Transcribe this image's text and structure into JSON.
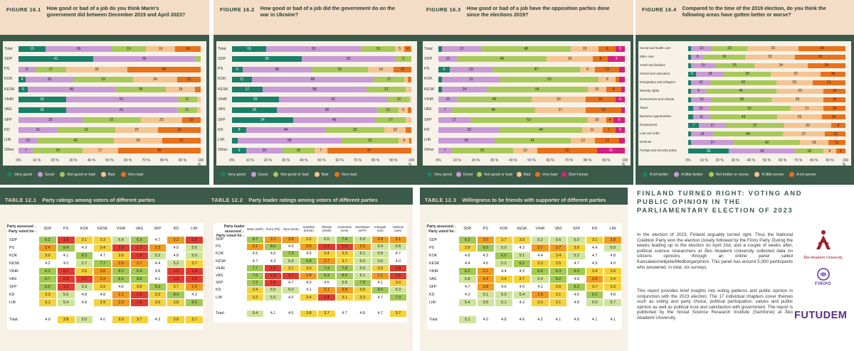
{
  "colors": {
    "very_good": "#19806a",
    "good": "#c89ad6",
    "not_good_or_bad": "#a8c95a",
    "bad": "#f5c490",
    "very_bad": "#e8711a",
    "dont_know": "#d6207e",
    "better_a_lot": "#19806a",
    "better_little": "#c89ad6",
    "neither": "#a8c95a",
    "worse_little": "#f5c490",
    "worse_a_lot": "#e8711a",
    "panel": "#3b5a4a",
    "header": "#f4ddc6",
    "scale_red": "#e03b30",
    "scale_orange": "#f29b1d",
    "scale_yellow": "#f5d23a",
    "scale_lightgreen": "#cfe49a",
    "scale_green": "#a3c954"
  },
  "chart_data": [
    {
      "type": "bar",
      "label": "FIGURE 16.1",
      "title": "How good or bad of a job do you think Marin's government did between December 2019 and April 2023?",
      "categories": [
        "Total",
        "SDP",
        "PS",
        "KOK",
        "KESK",
        "VIHR",
        "VAS",
        "SFP",
        "KD",
        "LIIK",
        "Other"
      ],
      "series": [
        {
          "name": "Very good",
          "values": [
            15,
            41,
            0,
            4,
            5,
            26,
            26,
            0,
            0,
            0,
            0
          ]
        },
        {
          "name": "Good",
          "values": [
            36,
            56,
            9,
            26,
            48,
            61,
            61,
            35,
            21,
            10,
            7
          ]
        },
        {
          "name": "Not good or bad",
          "values": [
            19,
            3,
            17,
            33,
            28,
            11,
            11,
            32,
            31,
            42,
            24
          ]
        },
        {
          "name": "Bad",
          "values": [
            16,
            0,
            33,
            24,
            16,
            2,
            2,
            23,
            23,
            26,
            17
          ]
        },
        {
          "name": "Very bad",
          "values": [
            14,
            0,
            40,
            13,
            3,
            0,
            0,
            10,
            23,
            21,
            40
          ]
        }
      ],
      "legend": [
        "Very good",
        "Good",
        "Not good or bad",
        "Bad",
        "Very bad"
      ],
      "xticks": [
        "0%",
        "10 %",
        "20 %",
        "30 %",
        "40 %",
        "50 %",
        "60 %",
        "70 %",
        "80 %",
        "90 %",
        "100 %"
      ]
    },
    {
      "type": "bar",
      "label": "FIGURE 16.2",
      "title": "How good or bad of a job did the government do on the war in Ukraine?",
      "categories": [
        "Total",
        "SDP",
        "PS",
        "KOK",
        "KESK",
        "VIHR",
        "VAS",
        "SFP",
        "KD",
        "LIIK",
        "Other"
      ],
      "series": [
        {
          "name": "Very good",
          "values": [
            19,
            39,
            6,
            11,
            17,
            26,
            25,
            34,
            8,
            3,
            8
          ]
        },
        {
          "name": "Good",
          "values": [
            53,
            52,
            38,
            68,
            58,
            61,
            56,
            46,
            44,
            58,
            20
          ]
        },
        {
          "name": "Not good or bad",
          "values": [
            19,
            9,
            32,
            17,
            22,
            12,
            12,
            17,
            33,
            32,
            18
          ]
        },
        {
          "name": "Bad",
          "values": [
            5,
            0,
            14,
            2,
            3,
            1,
            5,
            3,
            12,
            6,
            7
          ]
        },
        {
          "name": "Very bad",
          "values": [
            4,
            0,
            10,
            2,
            0,
            0,
            2,
            0,
            3,
            1,
            47
          ]
        }
      ],
      "legend": [
        "Very good",
        "Good",
        "Not good or bad",
        "Bad",
        "Very bad"
      ],
      "xticks": [
        "0%",
        "10 %",
        "20 %",
        "30 %",
        "40 %",
        "50 %",
        "60 %",
        "70 %",
        "80 %",
        "90 %",
        "100 %"
      ]
    },
    {
      "type": "bar",
      "label": "FIGURE 16.3",
      "title": "How good or bad of a job have the opposition parties done since the elections 2019?",
      "categories": [
        "Total",
        "SDP",
        "PS",
        "KOK",
        "KESK",
        "VIHR",
        "VAS",
        "SFP",
        "KD",
        "LIIK",
        "Other"
      ],
      "series": [
        {
          "name": "Very good",
          "values": [
            2,
            0,
            6,
            2,
            2,
            0,
            0,
            0,
            0,
            0,
            0
          ]
        },
        {
          "name": "Good",
          "values": [
            21,
            10,
            23,
            31,
            24,
            10,
            7,
            17,
            33,
            30,
            7
          ]
        },
        {
          "name": "Not good or bad",
          "values": [
            48,
            48,
            47,
            53,
            54,
            40,
            45,
            63,
            44,
            41,
            33
          ]
        },
        {
          "name": "Bad",
          "values": [
            15,
            25,
            8,
            9,
            10,
            29,
            27,
            10,
            11,
            13,
            13
          ]
        },
        {
          "name": "Very bad",
          "values": [
            9,
            8,
            13,
            2,
            8,
            16,
            19,
            4,
            7,
            13,
            32
          ]
        },
        {
          "name": "Don't know",
          "values": [
            5,
            9,
            3,
            3,
            2,
            5,
            2,
            6,
            5,
            3,
            15
          ]
        }
      ],
      "legend": [
        "Very good",
        "Good",
        "Not good or bad",
        "Bad",
        "Very bad",
        "Don't know"
      ],
      "xticks": [
        "0%",
        "10 %",
        "20 %",
        "30 %",
        "40 %",
        "50 %",
        "60 %",
        "70 %",
        "80 %",
        "90 %",
        "100 %"
      ]
    },
    {
      "type": "bar",
      "label": "FIGURE 16.4",
      "title": "Compared to the time of the 2019 election, do you think the following areas have gotten better or worse?",
      "categories": [
        "Social and health care",
        "Elder care",
        "Youth and families",
        "School and education",
        "Immigration and refugees",
        "Minority rights",
        "Environment and climate",
        "Taxes",
        "Business opportunities",
        "Employment",
        "Law and order",
        "Defense",
        "Foreign and security policy"
      ],
      "series": [
        {
          "name": "A lot better",
          "values": [
            2,
            2,
            2,
            5,
            2,
            2,
            2,
            3,
            3,
            7,
            2,
            2,
            26
          ]
        },
        {
          "name": "A little better",
          "values": [
            13,
            8,
            15,
            18,
            12,
            9,
            13,
            10,
            11,
            17,
            14,
            27,
            42
          ]
        },
        {
          "name": "Neither better or worse",
          "values": [
            23,
            26,
            25,
            30,
            42,
            45,
            38,
            52,
            43,
            37,
            44,
            42,
            18
          ]
        },
        {
          "name": "A little worse",
          "values": [
            33,
            32,
            34,
            32,
            23,
            30,
            33,
            21,
            29,
            30,
            27,
            18,
            8
          ]
        },
        {
          "name": "A lot worse",
          "values": [
            30,
            32,
            24,
            16,
            21,
            14,
            14,
            14,
            15,
            9,
            13,
            11,
            6
          ]
        }
      ],
      "legend": [
        "A lot better",
        "A little better",
        "Not better or worse",
        "A little worse",
        "A lot worse"
      ],
      "xticks": [
        "0%",
        "10 %",
        "20 %",
        "30 %",
        "40 %",
        "50 %",
        "60 %",
        "70 %",
        "80 %",
        "90 %",
        "100 %"
      ]
    },
    {
      "type": "table",
      "label": "TABLE 12.1",
      "title": "Party ratings among voters of different parties",
      "corner": [
        "Party assessed→",
        "Party voted for ↓"
      ],
      "columns": [
        "SDP",
        "PS",
        "KOK",
        "KESK",
        "VIHR",
        "VAS",
        "SFP",
        "KD",
        "LIIK"
      ],
      "rows": [
        "SDP",
        "PS",
        "KOK",
        "KESK",
        "VIHR",
        "VAS",
        "SFP",
        "KD",
        "LIIK"
      ],
      "values": [
        [
          "6.2",
          "1.6",
          "3.1",
          "3.3",
          "5.8",
          "6.3",
          "4.7",
          "2.2",
          "1.9"
        ],
        [
          "2.4",
          "8.4",
          "4.9",
          "3.4",
          "1.0",
          "1.7",
          "2.3",
          "4.5",
          "5.6"
        ],
        [
          "3.9",
          "4.1",
          "8.3",
          "4.7",
          "3.6",
          "1.8",
          "5.2",
          "4.8",
          "5.0"
        ],
        [
          "4.2",
          "4.0",
          "5.7",
          "7.7",
          "2.6",
          "2.7",
          "4.4",
          "5.3",
          "3.7"
        ],
        [
          "6.2",
          "0.7",
          "3.5",
          "2.6",
          "8.3",
          "6.4",
          "4.8",
          "1.5",
          "1.8"
        ],
        [
          "6.7",
          "0.8",
          "1.7",
          "2.3",
          "6.6",
          "8.8",
          "4.1",
          "1.3",
          "1.5"
        ],
        [
          "6.0",
          "1.5",
          "5.3",
          "3.9",
          "4.6",
          "3.8",
          "8.3",
          "3.7",
          "2.9"
        ],
        [
          "3.3",
          "5.6",
          "4.8",
          "4.8",
          "2.1",
          "1.8",
          "3.3",
          "8.4",
          "4.3"
        ],
        [
          "3.1",
          "5.4",
          "4.8",
          "3.9",
          "2.3",
          "1.8",
          "3.5",
          "3.8",
          "8.0"
        ]
      ],
      "total_label": "Total:",
      "totals": [
        "4.9",
        "3.8",
        "5.0",
        "4.0",
        "3.9",
        "3.7",
        "4.3",
        "3.8",
        "3.7"
      ]
    },
    {
      "type": "table",
      "label": "TABLE 12.2",
      "title": "Party leader ratings among voters of different parties",
      "corner": [
        "Party leader assessed→",
        "Party voted for ↓"
      ],
      "columns": [
        "Marin (SDP)",
        "Purra (PS)",
        "Orpo (KOK)",
        "Saarikko (KESK)",
        "Ohisalo (VIHR)",
        "Andersson (VAS)",
        "Henriksson (SFP)",
        "Essayah (KD)",
        "Harkimo (LIIK)"
      ],
      "rows": [
        "SDP",
        "PS",
        "KOK",
        "KESK",
        "VIHR",
        "VAS",
        "SFP",
        "KD",
        "LIIK"
      ],
      "values": [
        [
          "8.7",
          "2.1",
          "2.8",
          "3.5",
          "5.5",
          "7.4",
          "5.9",
          "2.9",
          "2.1"
        ],
        [
          "2.1",
          "8.0",
          "4.5",
          "2.6",
          "1.1",
          "1.9",
          "2.5",
          "5.4",
          "5.6"
        ],
        [
          "4.5",
          "4.6",
          "7.3",
          "4.5",
          "3.4",
          "3.3",
          "5.1",
          "5.9",
          "4.7"
        ],
        [
          "4.7",
          "4.3",
          "5.9",
          "6.8",
          "2.7",
          "3.7",
          "5.0",
          "5.6",
          "4.0"
        ],
        [
          "7.7",
          "1.2",
          "3.1",
          "3.0",
          "7.3",
          "7.8",
          "5.9",
          "3.0",
          "1.8"
        ],
        [
          "7.6",
          "1.3",
          "1.7",
          "2.8",
          "6.3",
          "8.9",
          "5.1",
          "2.1",
          "1.5"
        ],
        [
          "7.2",
          "1.8",
          "4.7",
          "4.0",
          "4.6",
          "5.8",
          "7.8",
          "4.1",
          "3.0"
        ],
        [
          "3.4",
          "5.5",
          "5.0",
          "4.1",
          "2.1",
          "2.8",
          "3.8",
          "8.6",
          "5.3"
        ],
        [
          "3.2",
          "5.5",
          "4.0",
          "3.4",
          "1.4",
          "3.1",
          "3.3",
          "4.7",
          "7.3"
        ]
      ],
      "total_label": "Total:",
      "totals": [
        "5.4",
        "4.1",
        "4.6",
        "3.8",
        "3.7",
        "4.7",
        "4.8",
        "4.7",
        "3.7"
      ]
    },
    {
      "type": "table",
      "label": "TABLE 12.3",
      "title": "Willingness to be friends with supporter of different parties",
      "corner": [
        "Party assessed→",
        "Party voted for ↓"
      ],
      "columns": [
        "SDP",
        "PS",
        "KOK",
        "KESK",
        "VIHR",
        "VAS",
        "SFP",
        "KD",
        "LIIK"
      ],
      "rows": [
        "SDP",
        "PS",
        "KOK",
        "KESK",
        "VIHR",
        "VAS",
        "SFP",
        "KD",
        "LIIK"
      ],
      "values": [
        [
          "6.3",
          "2.5",
          "3.7",
          "3.9",
          "5.2",
          "5.6",
          "5.0",
          "3.1",
          "2.8"
        ],
        [
          "3.8",
          "6.0",
          "5.0",
          "4.3",
          "2.7",
          "2.7",
          "3.6",
          "4.4",
          "5.0"
        ],
        [
          "4.8",
          "4.3",
          "6.0",
          "5.1",
          "4.4",
          "3.4",
          "5.2",
          "4.7",
          "4.8"
        ],
        [
          "4.4",
          "4.6",
          "5.2",
          "6.2",
          "3.3",
          "3.5",
          "4.7",
          "4.9",
          "4.0"
        ],
        [
          "6.2",
          "2.1",
          "4.4",
          "4.3",
          "6.6",
          "6.3",
          "6.0",
          "3.4",
          "3.6"
        ],
        [
          "5.8",
          "2.4",
          "3.4",
          "3.7",
          "5.4",
          "6.2",
          "4.8",
          "2.9",
          "3.4"
        ],
        [
          "4.7",
          "2.8",
          "4.6",
          "4.0",
          "4.1",
          "3.5",
          "6.2",
          "3.7",
          "3.3"
        ],
        [
          "4.3",
          "5.1",
          "5.0",
          "5.4",
          "2.8",
          "3.1",
          "4.6",
          "6.1",
          "4.8"
        ],
        [
          "5.4",
          "5.6",
          "5.1",
          "4.2",
          "3.0",
          "3.1",
          "4.8",
          "5.0",
          "5.7"
        ]
      ],
      "total_label": "Total:",
      "totals": [
        "5.1",
        "4.0",
        "4.8",
        "4.6",
        "4.2",
        "4.1",
        "4.8",
        "4.1",
        "4.1"
      ]
    }
  ],
  "info": {
    "title": "FINLAND TURNED RIGHT: VOTING AND PUBLIC OPINION IN THE PARLIAMENTARY ELECTION OF 2023",
    "p1": "In the election of 2023, Finland arguably turned right. Thus the National Coalition Party won the election closely followed by the Finns Party. During the weeks leading up to the election on April 2nd, and a couple of weeks after, political science researchers at Åbo Akademi University collected data on citizens opinions through an online panel called Kansalaismielipide/Medborgarpinion. This panel has around 5,000 participants who answered, in total, six surveys.",
    "p2": "This report provides brief insights into voting patterns and public opinion in conjunction with the 2023 election. The 17 individual chapters cover themes such as voting and party choice, political participation, values and public opinion as well as political trust and satisfaction with government. The report is published by the Social Science Research Institute (Samforsk) at Åbo Akademi University.",
    "logos": {
      "abo": "Åbo Akademi University",
      "firipo": "FIRIPO",
      "futudem": "FUTUDEM"
    }
  }
}
